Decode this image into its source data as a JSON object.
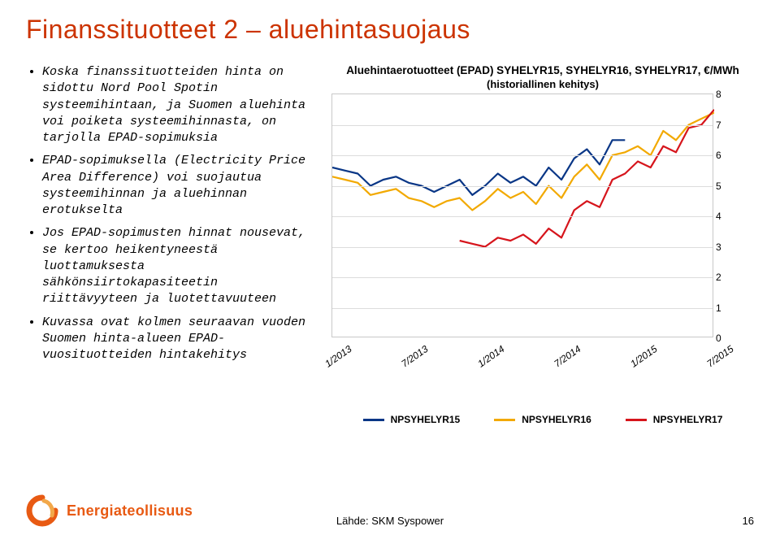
{
  "title": "Finanssituotteet 2 – aluehintasuojaus",
  "bullets": [
    "Koska finanssituotteiden hinta on sidottu Nord Pool Spotin systeemihintaan, ja Suomen aluehinta voi poiketa systeemihinnasta, on tarjolla EPAD-sopimuksia",
    "EPAD-sopimuksella (Electricity Price Area Difference) voi suojautua systeemihinnan ja aluehinnan erotukselta",
    "Jos EPAD-sopimusten hinnat nousevat, se kertoo heikentyneestä luottamuksesta sähkönsiirtokapasiteetin riittävyyteen ja luotettavuuteen",
    "Kuvassa ovat kolmen seuraavan vuoden Suomen hinta-alueen EPAD-vuosituotteiden hintakehitys"
  ],
  "chart": {
    "type": "line",
    "title": "Aluehintaerotuotteet (EPAD) SYHELYR15, SYHELYR16, SYHELYR17, €/MWh",
    "subtitle": "(historiallinen kehitys)",
    "xlim": [
      0,
      30
    ],
    "ylim": [
      0,
      8
    ],
    "ytick_step": 1,
    "x_categories": [
      "1/2013",
      "7/2013",
      "1/2014",
      "7/2014",
      "1/2015",
      "7/2015"
    ],
    "x_category_positions": [
      0,
      6,
      12,
      18,
      24,
      30
    ],
    "grid_color": "#dcdcdc",
    "border_color": "#c8c8c8",
    "background": "#ffffff",
    "line_width": 2.2,
    "tick_fontsize": 12,
    "title_fontsize": 13.5,
    "series": [
      {
        "name": "NPSYHELYR15",
        "color": "#093686",
        "x": [
          0,
          1,
          2,
          3,
          4,
          5,
          6,
          7,
          8,
          9,
          10,
          11,
          12,
          13,
          14,
          15,
          16,
          17,
          18,
          19,
          20,
          21,
          22,
          23
        ],
        "y": [
          5.6,
          5.5,
          5.4,
          5.0,
          5.2,
          5.3,
          5.1,
          5.0,
          4.8,
          5.0,
          5.2,
          4.7,
          5.0,
          5.4,
          5.1,
          5.3,
          5.0,
          5.6,
          5.2,
          5.9,
          6.2,
          5.7,
          6.5,
          6.5
        ]
      },
      {
        "name": "NPSYHELYR16",
        "color": "#f2a900",
        "x": [
          0,
          1,
          2,
          3,
          4,
          5,
          6,
          7,
          8,
          9,
          10,
          11,
          12,
          13,
          14,
          15,
          16,
          17,
          18,
          19,
          20,
          21,
          22,
          23,
          24,
          25,
          26,
          27,
          28,
          29,
          30
        ],
        "y": [
          5.3,
          5.2,
          5.1,
          4.7,
          4.8,
          4.9,
          4.6,
          4.5,
          4.3,
          4.5,
          4.6,
          4.2,
          4.5,
          4.9,
          4.6,
          4.8,
          4.4,
          5.0,
          4.6,
          5.3,
          5.7,
          5.2,
          6.0,
          6.1,
          6.3,
          6.0,
          6.8,
          6.5,
          7.0,
          7.2,
          7.4
        ]
      },
      {
        "name": "NPSYHELYR17",
        "color": "#d6151c",
        "x": [
          10,
          11,
          12,
          13,
          14,
          15,
          16,
          17,
          18,
          19,
          20,
          21,
          22,
          23,
          24,
          25,
          26,
          27,
          28,
          29,
          30
        ],
        "y": [
          3.2,
          3.1,
          3.0,
          3.3,
          3.2,
          3.4,
          3.1,
          3.6,
          3.3,
          4.2,
          4.5,
          4.3,
          5.2,
          5.4,
          5.8,
          5.6,
          6.3,
          6.1,
          6.9,
          7.0,
          7.5
        ]
      }
    ]
  },
  "legend": {
    "items": [
      {
        "label": "NPSYHELYR15",
        "color": "#093686"
      },
      {
        "label": "NPSYHELYR16",
        "color": "#f2a900"
      },
      {
        "label": "NPSYHELYR17",
        "color": "#d6151c"
      }
    ]
  },
  "footer": {
    "logo_text": "Energiateollisuus",
    "logo_color": "#e85a13",
    "source": "Lähde: SKM Syspower",
    "page": "16"
  }
}
